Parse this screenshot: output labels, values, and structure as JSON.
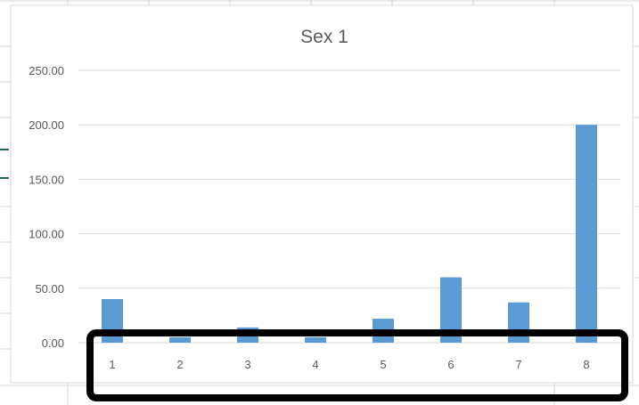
{
  "chart_data": {
    "type": "bar",
    "title": "Sex 1",
    "xlabel": "",
    "ylabel": "",
    "categories": [
      "1",
      "2",
      "3",
      "4",
      "5",
      "6",
      "7",
      "8"
    ],
    "values": [
      40,
      5,
      14,
      5,
      22,
      60,
      37,
      200
    ],
    "ylim": [
      0,
      250
    ],
    "yticks": [
      "0.00",
      "50.00",
      "100.00",
      "150.00",
      "200.00",
      "250.00"
    ],
    "grid": true,
    "legend": "none",
    "bar_color": "#5B9BD5",
    "gridline_color": "#D9D9D9",
    "highlight_box": {
      "color": "#000000",
      "target": "x-axis-category-labels"
    }
  },
  "colors": {
    "sheet_grid": "#D4D4D4",
    "sheet_marker": "#217346",
    "chart_border": "#D9D9D9",
    "text": "#595959"
  }
}
